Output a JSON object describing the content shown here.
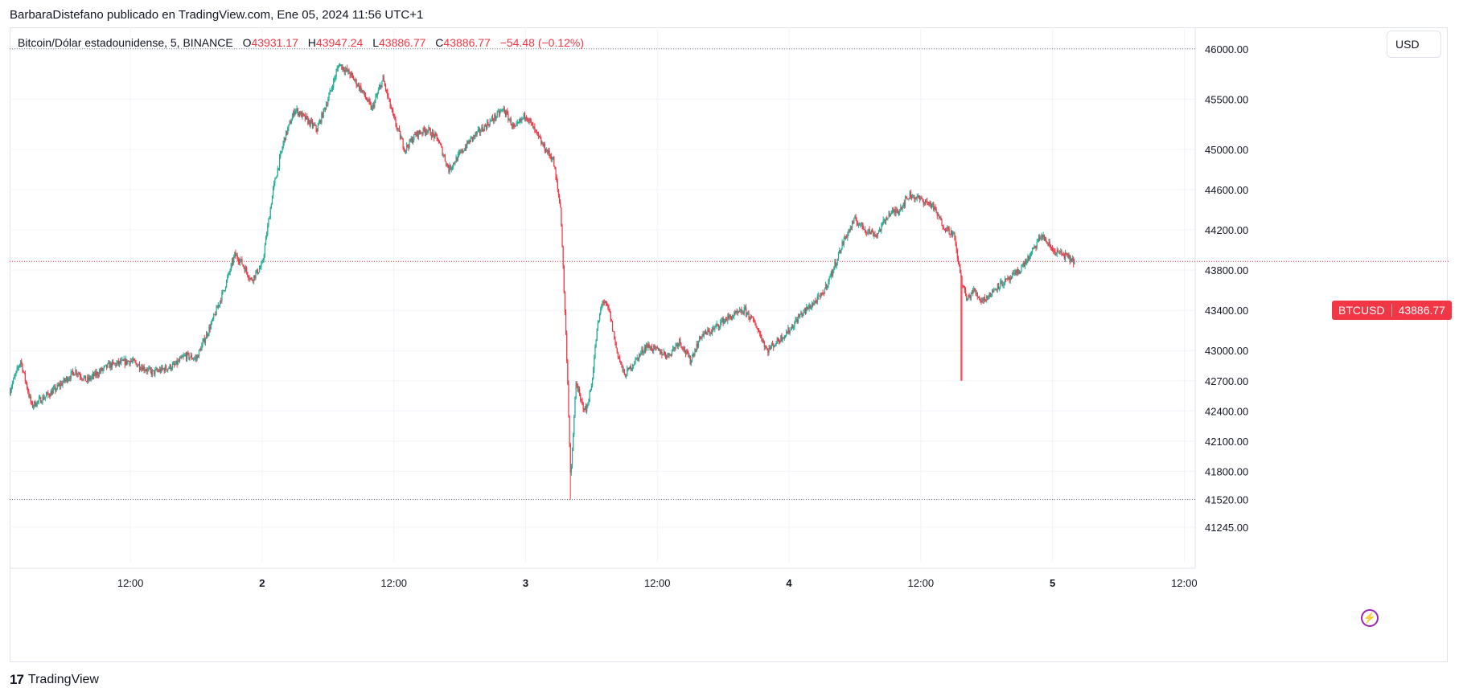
{
  "header": {
    "publisher_line": "BarbaraDistefano publicado en TradingView.com, Ene 05, 2024 11:56 UTC+1"
  },
  "legend": {
    "symbol": "Bitcoin/Dólar estadounidense, 5, BINANCE",
    "o_label": "O",
    "o_value": "43931.17",
    "h_label": "H",
    "h_value": "43947.24",
    "l_label": "L",
    "l_value": "43886.77",
    "c_label": "C",
    "c_value": "43886.77",
    "change": "−54.48 (−0.12%)"
  },
  "currency_button": "USD",
  "last_price_tag": {
    "ticker": "BTCUSD",
    "price": "43886.77"
  },
  "brand": {
    "logo": "17",
    "name": "TradingView"
  },
  "colors": {
    "up": "#22ab94",
    "down": "#f23645",
    "grid": "#f0f3fa",
    "axis_text": "#131722"
  },
  "icons": {
    "alert": "lightning-bolt-icon"
  },
  "chart_data": {
    "type": "candlestick",
    "symbol": "BTCUSD",
    "interval": "5",
    "exchange": "BINANCE",
    "y_ticks": [
      46000,
      45500,
      45000,
      44600,
      44200,
      43800,
      43400,
      43000,
      42700,
      42400,
      42100,
      41800,
      41520,
      41245
    ],
    "y_tick_labels": [
      "46000.00",
      "45500.00",
      "45000.00",
      "44600.00",
      "44200.00",
      "43800.00",
      "43400.00",
      "43000.00",
      "42700.00",
      "42400.00",
      "42100.00",
      "41800.00",
      "41520.00",
      "41245.00"
    ],
    "x_tick_labels": [
      "12:00",
      "2",
      "12:00",
      "3",
      "12:00",
      "4",
      "12:00",
      "5",
      "12:00"
    ],
    "x_tick_hours": [
      12,
      24,
      36,
      48,
      60,
      72,
      84,
      96,
      108
    ],
    "x_range_hours": [
      1,
      109
    ],
    "y_range": [
      41100,
      46150
    ],
    "high_line": 46000,
    "low_line": 41520,
    "last_price": 43886.77,
    "close_path": [
      [
        1,
        42600
      ],
      [
        2,
        42900
      ],
      [
        3,
        42450
      ],
      [
        5,
        42600
      ],
      [
        7,
        42800
      ],
      [
        8,
        42700
      ],
      [
        10,
        42850
      ],
      [
        12,
        42900
      ],
      [
        14,
        42780
      ],
      [
        16,
        42850
      ],
      [
        17,
        42950
      ],
      [
        18,
        42920
      ],
      [
        19.5,
        43300
      ],
      [
        20.5,
        43600
      ],
      [
        21.5,
        43950
      ],
      [
        22,
        43900
      ],
      [
        23,
        43700
      ],
      [
        24,
        43850
      ],
      [
        25,
        44600
      ],
      [
        26,
        45100
      ],
      [
        27,
        45400
      ],
      [
        28,
        45300
      ],
      [
        29,
        45200
      ],
      [
        30,
        45500
      ],
      [
        31,
        45850
      ],
      [
        32,
        45750
      ],
      [
        33,
        45600
      ],
      [
        34,
        45400
      ],
      [
        35,
        45700
      ],
      [
        36,
        45300
      ],
      [
        37,
        45000
      ],
      [
        38,
        45150
      ],
      [
        39,
        45200
      ],
      [
        40,
        45100
      ],
      [
        41,
        44800
      ],
      [
        42,
        44950
      ],
      [
        43,
        45100
      ],
      [
        44,
        45200
      ],
      [
        45,
        45300
      ],
      [
        46,
        45400
      ],
      [
        47,
        45200
      ],
      [
        48,
        45350
      ],
      [
        49.5,
        45050
      ],
      [
        50.5,
        44900
      ],
      [
        51.2,
        44400
      ],
      [
        51.8,
        42800
      ],
      [
        52.1,
        41700
      ],
      [
        52.6,
        42700
      ],
      [
        53,
        42500
      ],
      [
        53.5,
        42400
      ],
      [
        54,
        42650
      ],
      [
        54.5,
        43200
      ],
      [
        55,
        43500
      ],
      [
        55.6,
        43400
      ],
      [
        56.3,
        43000
      ],
      [
        57,
        42750
      ],
      [
        58,
        42900
      ],
      [
        59,
        43050
      ],
      [
        60,
        43000
      ],
      [
        61,
        42950
      ],
      [
        62,
        43100
      ],
      [
        63,
        42900
      ],
      [
        64,
        43150
      ],
      [
        65,
        43200
      ],
      [
        66,
        43300
      ],
      [
        67,
        43350
      ],
      [
        68,
        43400
      ],
      [
        69,
        43250
      ],
      [
        70,
        43000
      ],
      [
        71,
        43100
      ],
      [
        72,
        43200
      ],
      [
        73,
        43350
      ],
      [
        74,
        43450
      ],
      [
        75,
        43550
      ],
      [
        76,
        43800
      ],
      [
        77,
        44100
      ],
      [
        78,
        44300
      ],
      [
        79,
        44200
      ],
      [
        80,
        44150
      ],
      [
        81,
        44350
      ],
      [
        82,
        44400
      ],
      [
        83,
        44550
      ],
      [
        84,
        44500
      ],
      [
        85,
        44450
      ],
      [
        86,
        44250
      ],
      [
        87,
        44150
      ],
      [
        87.7,
        43700
      ],
      [
        88.2,
        43500
      ],
      [
        88.8,
        43600
      ],
      [
        89.5,
        43500
      ],
      [
        90.3,
        43550
      ],
      [
        91,
        43650
      ],
      [
        92,
        43700
      ],
      [
        93,
        43800
      ],
      [
        94,
        43950
      ],
      [
        95,
        44150
      ],
      [
        96,
        44000
      ],
      [
        97,
        43950
      ],
      [
        98,
        43886.77
      ]
    ]
  }
}
